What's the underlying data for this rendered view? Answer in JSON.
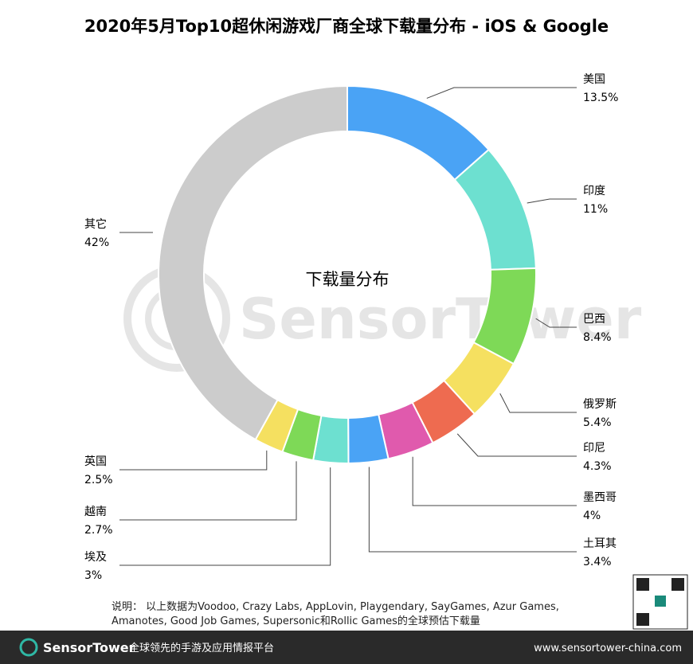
{
  "chart_data": {
    "type": "donut",
    "title": "2020年5月Top10超休闲游戏厂商全球下载量分布 - iOS & Google",
    "center_label": "下载量分布",
    "categories": [
      "美国",
      "印度",
      "巴西",
      "俄罗斯",
      "印尼",
      "墨西哥",
      "土耳其",
      "埃及",
      "越南",
      "英国",
      "其它"
    ],
    "values": [
      13.5,
      11,
      8.4,
      5.4,
      4.3,
      4,
      3.4,
      3,
      2.7,
      2.5,
      42
    ],
    "value_labels": [
      "13.5%",
      "11%",
      "8.4%",
      "5.4%",
      "4.3%",
      "4%",
      "3.4%",
      "3%",
      "2.7%",
      "2.5%",
      "42%"
    ],
    "colors": [
      "#4aa3f5",
      "#6de0d0",
      "#7ed957",
      "#f5e060",
      "#ee6b50",
      "#e05aad",
      "#4aa3f5",
      "#6de0d0",
      "#7ed957",
      "#f5e060",
      "#cccccc"
    ]
  },
  "watermark": "SensorTower",
  "note": "说明： 以上数据为Voodoo, Crazy Labs, AppLovin, Playgendary, SayGames, Azur Games, Amanotes, Good Job Games, Supersonic和Rollic Games的全球预估下载量",
  "footer": {
    "brand": "SensorTower",
    "slogan": "全球领先的手游及应用情报平台",
    "url": "www.sensortower-china.com"
  }
}
